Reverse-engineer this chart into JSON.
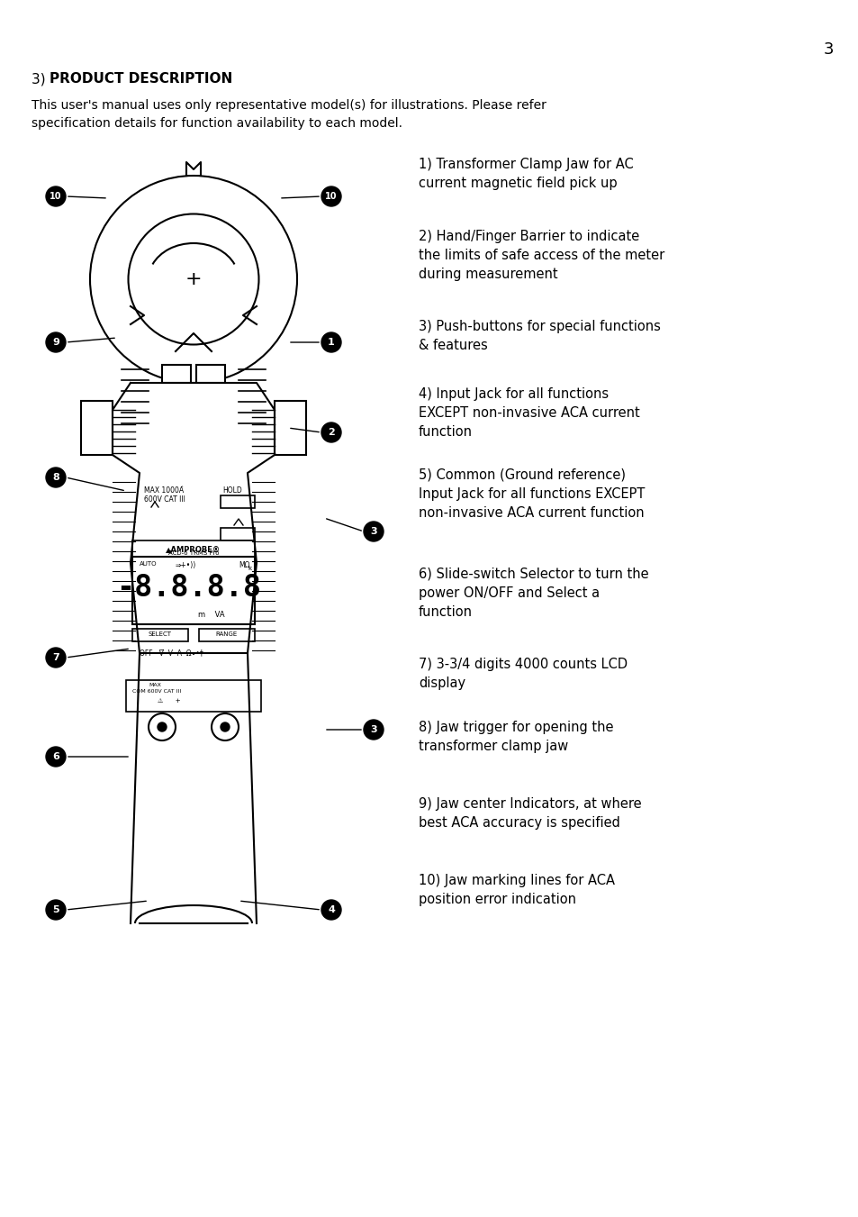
{
  "page_number": "3",
  "title": "3) PRODUCT DESCRIPTION",
  "title_bold_part": "PRODUCT DESCRIPTION",
  "intro_text": "This user's manual uses only representative model(s) for illustrations. Please refer\nspecification details for function availability to each model.",
  "descriptions": [
    "1) Transformer Clamp Jaw for AC\ncurrent magnetic field pick up",
    "2) Hand/Finger Barrier to indicate\nthe limits of safe access of the meter\nduring measurement",
    "3) Push-buttons for special functions\n& features",
    "4) Input Jack for all functions\nEXCEPT non-invasive ACA current\nfunction",
    "5) Common (Ground reference)\nInput Jack for all functions EXCEPT\nnon-invasive ACA current function",
    "6) Slide-switch Selector to turn the\npower ON/OFF and Select a\nfunction",
    "7) 3-3/4 digits 4000 counts LCD\ndisplay",
    "8) Jaw trigger for opening the\ntransformer clamp jaw",
    "9) Jaw center Indicators, at where\nbest ACA accuracy is specified",
    "10) Jaw marking lines for ACA\nposition error indication"
  ],
  "bg_color": "#ffffff",
  "text_color": "#000000",
  "font_size_title": 11,
  "font_size_body": 10,
  "font_size_page": 11
}
